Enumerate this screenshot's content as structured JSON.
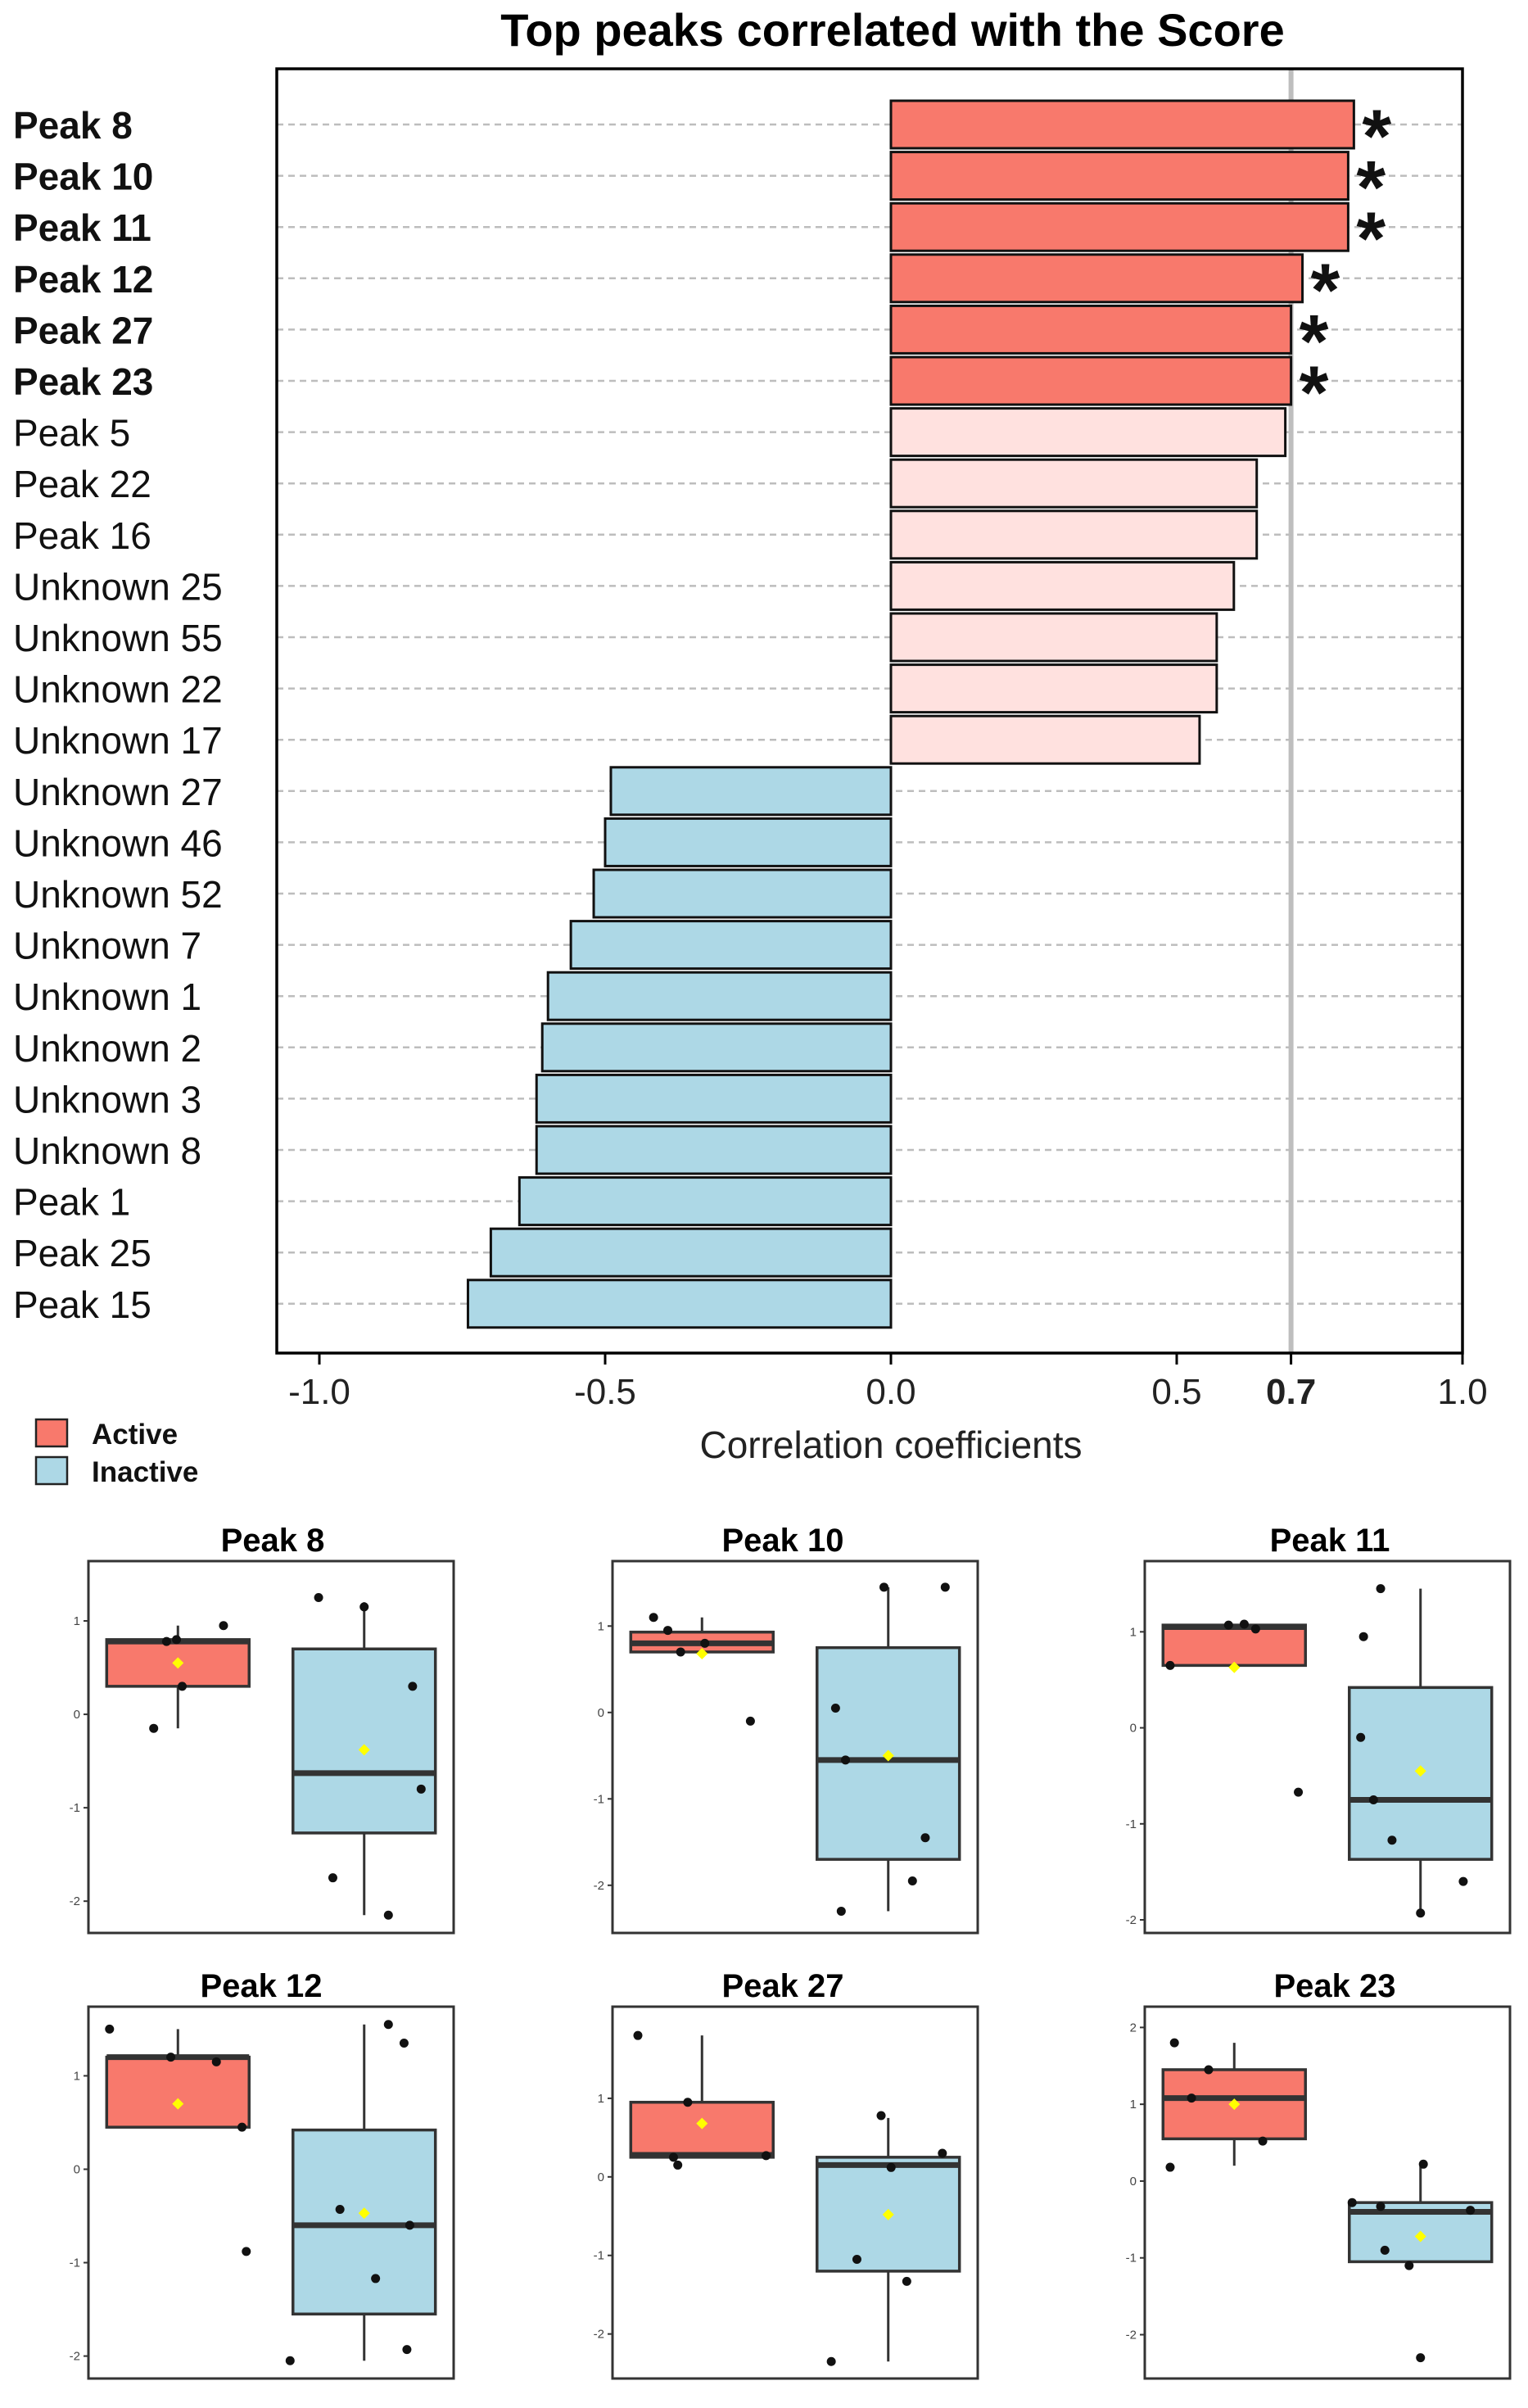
{
  "colors": {
    "active_sig": "#F8796C",
    "active": "#FFE1DF",
    "inactive": "#ADD8E6",
    "threshold": "#BEBEBE",
    "mean_marker": "#FFFF00"
  },
  "chart_data": [
    {
      "type": "bar",
      "orientation": "horizontal",
      "title": "Top peaks correlated with the Score",
      "xlabel": "Correlation coefficients",
      "ylabel": "",
      "xlim": [
        -1.0,
        1.0
      ],
      "xticks": [
        {
          "value": -1.0,
          "label": "-1.0",
          "bold": false
        },
        {
          "value": -0.5,
          "label": "-0.5",
          "bold": false
        },
        {
          "value": 0.0,
          "label": "0.0",
          "bold": false
        },
        {
          "value": 0.5,
          "label": "0.5",
          "bold": false
        },
        {
          "value": 0.7,
          "label": "0.7",
          "bold": true
        },
        {
          "value": 1.0,
          "label": "1.0",
          "bold": false
        }
      ],
      "threshold": 0.7,
      "significance_marker": "*",
      "categories": [
        "Peak 8",
        "Peak 10",
        "Peak 11",
        "Peak 12",
        "Peak 27",
        "Peak 23",
        "Peak 5",
        "Peak 22",
        "Peak 16",
        "Unknown 25",
        "Unknown 55",
        "Unknown 22",
        "Unknown 17",
        "Unknown 27",
        "Unknown 46",
        "Unknown 52",
        "Unknown 7",
        "Unknown 1",
        "Unknown 2",
        "Unknown 3",
        "Unknown 8",
        "Peak 1",
        "Peak 25",
        "Peak 15"
      ],
      "values": [
        0.81,
        0.8,
        0.8,
        0.72,
        0.7,
        0.7,
        0.69,
        0.64,
        0.64,
        0.6,
        0.57,
        0.57,
        0.54,
        -0.49,
        -0.5,
        -0.52,
        -0.56,
        -0.6,
        -0.61,
        -0.62,
        -0.62,
        -0.65,
        -0.7,
        -0.74
      ],
      "status": [
        "sig",
        "sig",
        "sig",
        "sig",
        "sig",
        "sig",
        "active",
        "active",
        "active",
        "active",
        "active",
        "active",
        "active",
        "inactive",
        "inactive",
        "inactive",
        "inactive",
        "inactive",
        "inactive",
        "inactive",
        "inactive",
        "inactive",
        "inactive",
        "inactive"
      ],
      "legend": [
        "Active",
        "Inactive"
      ],
      "legend_position": "bottom-left"
    },
    {
      "type": "box",
      "title": "Peak 8",
      "ylim": [
        -2.2,
        1.5
      ],
      "yticks": [
        {
          "value": 1,
          "label": "1"
        },
        {
          "value": 0,
          "label": "0"
        },
        {
          "value": -1,
          "label": "-1"
        },
        {
          "value": -2,
          "label": "-2"
        }
      ],
      "groups": [
        {
          "name": "Active",
          "q1": 0.3,
          "median": 0.78,
          "q3": 0.8,
          "whisker_low": -0.15,
          "whisker_high": 0.95,
          "mean": 0.55,
          "points": [
            [
              -0.15,
              -0.17
            ],
            [
              0.78,
              -0.08
            ],
            [
              0.8,
              -0.01
            ],
            [
              0.3,
              0.03
            ],
            [
              0.95,
              0.32
            ]
          ]
        },
        {
          "name": "Inactive",
          "q1": -1.27,
          "median": -0.63,
          "q3": 0.7,
          "whisker_low": -2.15,
          "whisker_high": 1.2,
          "mean": -0.38,
          "points": [
            [
              1.25,
              -0.32
            ],
            [
              -1.75,
              -0.22
            ],
            [
              1.15,
              0.0
            ],
            [
              -2.15,
              0.17
            ],
            [
              0.3,
              0.34
            ],
            [
              -0.8,
              0.4
            ]
          ]
        }
      ]
    },
    {
      "type": "box",
      "title": "Peak 10",
      "ylim": [
        -2.4,
        1.6
      ],
      "yticks": [
        {
          "value": 1,
          "label": "1"
        },
        {
          "value": 0,
          "label": "0"
        },
        {
          "value": -1,
          "label": "-1"
        },
        {
          "value": -2,
          "label": "-2"
        }
      ],
      "groups": [
        {
          "name": "Active",
          "q1": 0.7,
          "median": 0.8,
          "q3": 0.93,
          "whisker_low": 0.7,
          "whisker_high": 1.1,
          "mean": 0.68,
          "points": [
            [
              1.1,
              -0.34
            ],
            [
              0.95,
              -0.24
            ],
            [
              0.7,
              -0.15
            ],
            [
              0.8,
              0.02
            ],
            [
              -0.1,
              0.34
            ]
          ]
        },
        {
          "name": "Inactive",
          "q1": -1.7,
          "median": -0.55,
          "q3": 0.75,
          "whisker_low": -2.3,
          "whisker_high": 1.45,
          "mean": -0.5,
          "points": [
            [
              0.05,
              -0.37
            ],
            [
              -2.3,
              -0.33
            ],
            [
              -0.55,
              -0.3
            ],
            [
              1.45,
              -0.03
            ],
            [
              -1.95,
              0.17
            ],
            [
              -1.45,
              0.26
            ],
            [
              1.45,
              0.4
            ]
          ]
        }
      ]
    },
    {
      "type": "box",
      "title": "Peak 11",
      "ylim": [
        -2.0,
        1.6
      ],
      "yticks": [
        {
          "value": 1,
          "label": "1"
        },
        {
          "value": 0,
          "label": "0"
        },
        {
          "value": -1,
          "label": "-1"
        },
        {
          "value": -2,
          "label": "-2"
        }
      ],
      "groups": [
        {
          "name": "Active",
          "q1": 0.65,
          "median": 1.05,
          "q3": 1.07,
          "whisker_low": 0.65,
          "whisker_high": 1.07,
          "mean": 0.63,
          "points": [
            [
              0.65,
              -0.45
            ],
            [
              1.07,
              -0.04
            ],
            [
              1.08,
              0.07
            ],
            [
              1.03,
              0.15
            ],
            [
              -0.67,
              0.45
            ]
          ]
        },
        {
          "name": "Inactive",
          "q1": -1.37,
          "median": -0.75,
          "q3": 0.42,
          "whisker_low": -1.93,
          "whisker_high": 1.45,
          "mean": -0.45,
          "points": [
            [
              0.95,
              -0.4
            ],
            [
              -0.1,
              -0.42
            ],
            [
              -0.75,
              -0.33
            ],
            [
              1.45,
              -0.28
            ],
            [
              -1.17,
              -0.2
            ],
            [
              -1.93,
              0.0
            ],
            [
              -1.6,
              0.3
            ]
          ]
        }
      ]
    },
    {
      "type": "box",
      "title": "Peak 12",
      "ylim": [
        -2.1,
        1.6
      ],
      "yticks": [
        {
          "value": 1,
          "label": "1"
        },
        {
          "value": 0,
          "label": "0"
        },
        {
          "value": -1,
          "label": "-1"
        },
        {
          "value": -2,
          "label": "-2"
        }
      ],
      "groups": [
        {
          "name": "Active",
          "q1": 0.45,
          "median": 1.2,
          "q3": 1.2,
          "whisker_low": 0.45,
          "whisker_high": 1.5,
          "mean": 0.7,
          "points": [
            [
              1.5,
              -0.48
            ],
            [
              1.2,
              -0.05
            ],
            [
              1.15,
              0.27
            ],
            [
              0.45,
              0.45
            ],
            [
              -0.88,
              0.48
            ]
          ]
        },
        {
          "name": "Inactive",
          "q1": -1.55,
          "median": -0.6,
          "q3": 0.42,
          "whisker_low": -2.05,
          "whisker_high": 1.55,
          "mean": -0.47,
          "points": [
            [
              -2.05,
              -0.52
            ],
            [
              -0.43,
              -0.17
            ],
            [
              1.55,
              0.17
            ],
            [
              -1.17,
              0.08
            ],
            [
              -0.6,
              0.32
            ],
            [
              1.35,
              0.28
            ],
            [
              -1.93,
              0.3
            ]
          ]
        }
      ]
    },
    {
      "type": "box",
      "title": "Peak 27",
      "ylim": [
        -2.4,
        2.0
      ],
      "yticks": [
        {
          "value": 1,
          "label": "1"
        },
        {
          "value": 0,
          "label": "0"
        },
        {
          "value": -1,
          "label": "-1"
        },
        {
          "value": -2,
          "label": "-2"
        }
      ],
      "groups": [
        {
          "name": "Active",
          "q1": 0.25,
          "median": 0.28,
          "q3": 0.95,
          "whisker_low": 0.25,
          "whisker_high": 1.8,
          "mean": 0.68,
          "points": [
            [
              1.8,
              -0.45
            ],
            [
              0.25,
              -0.2
            ],
            [
              0.15,
              -0.17
            ],
            [
              0.95,
              -0.1
            ],
            [
              0.27,
              0.45
            ]
          ]
        },
        {
          "name": "Inactive",
          "q1": -1.2,
          "median": 0.15,
          "q3": 0.25,
          "whisker_low": -2.35,
          "whisker_high": 0.75,
          "mean": -0.48,
          "points": [
            [
              -2.35,
              -0.4
            ],
            [
              -1.05,
              -0.22
            ],
            [
              0.78,
              -0.05
            ],
            [
              0.12,
              0.02
            ],
            [
              -1.33,
              0.13
            ],
            [
              0.3,
              0.38
            ]
          ]
        }
      ]
    },
    {
      "type": "box",
      "title": "Peak 23",
      "ylim": [
        -2.4,
        2.1
      ],
      "yticks": [
        {
          "value": 2,
          "label": "2"
        },
        {
          "value": 1,
          "label": "1"
        },
        {
          "value": 0,
          "label": "0"
        },
        {
          "value": -1,
          "label": "-1"
        },
        {
          "value": -2,
          "label": "-2"
        }
      ],
      "groups": [
        {
          "name": "Active",
          "q1": 0.55,
          "median": 1.08,
          "q3": 1.45,
          "whisker_low": 0.2,
          "whisker_high": 1.8,
          "mean": 1.0,
          "points": [
            [
              0.18,
              -0.45
            ],
            [
              1.8,
              -0.42
            ],
            [
              1.08,
              -0.3
            ],
            [
              1.45,
              -0.18
            ],
            [
              0.52,
              0.2
            ]
          ]
        },
        {
          "name": "Inactive",
          "q1": -1.05,
          "median": -0.4,
          "q3": -0.28,
          "whisker_low": -1.05,
          "whisker_high": 0.22,
          "mean": -0.72,
          "points": [
            [
              -0.28,
              -0.48
            ],
            [
              -0.33,
              -0.28
            ],
            [
              -0.9,
              -0.25
            ],
            [
              -1.1,
              -0.08
            ],
            [
              -2.3,
              0.0
            ],
            [
              0.22,
              0.02
            ],
            [
              -0.38,
              0.35
            ]
          ]
        }
      ]
    }
  ]
}
